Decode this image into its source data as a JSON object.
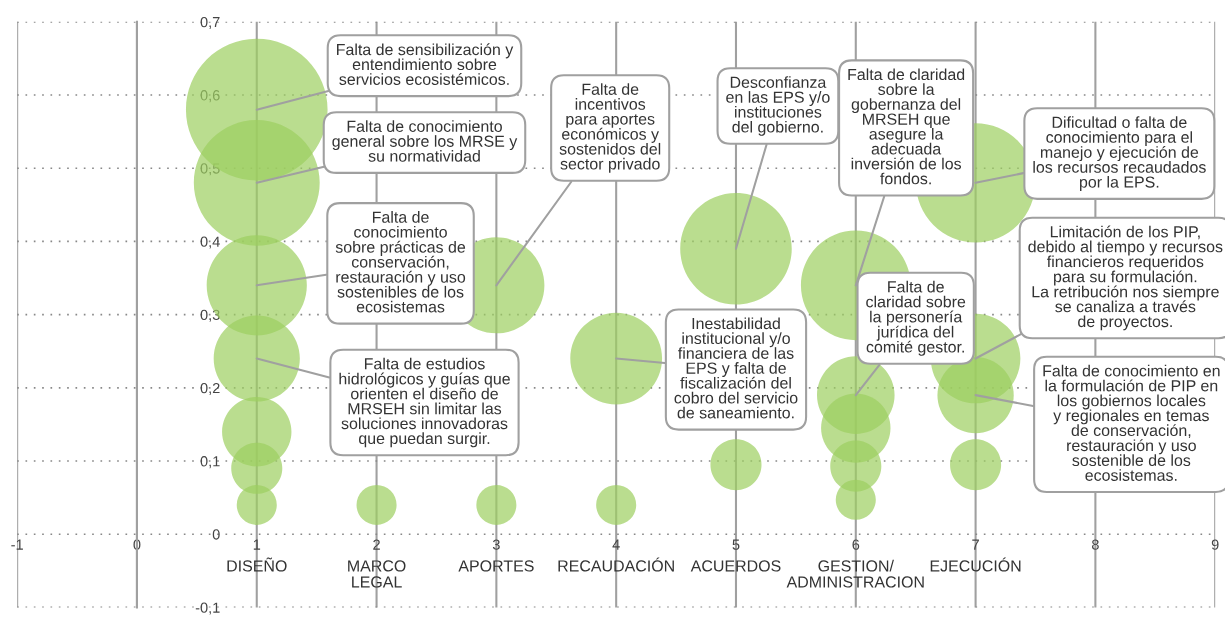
{
  "chart_data": {
    "type": "bubble",
    "x": [
      1,
      1,
      1,
      1,
      1,
      1,
      1,
      2,
      3,
      3,
      4,
      4,
      5,
      5,
      6,
      6,
      6,
      6,
      6,
      7,
      7,
      7,
      7
    ],
    "series": [
      {
        "color": "#9ccf5f",
        "values": [
          0.58,
          0.48,
          0.34,
          0.24,
          0.14,
          0.09,
          0.04,
          0.04,
          0.34,
          0.04,
          0.24,
          0.04,
          0.39,
          0.095,
          0.34,
          0.19,
          0.145,
          0.093,
          0.047,
          0.48,
          0.24,
          0.19,
          0.095
        ],
        "sizes": [
          1,
          0.79,
          0.5,
          0.37,
          0.24,
          0.13,
          0.08,
          0.08,
          0.46,
          0.08,
          0.42,
          0.08,
          0.62,
          0.13,
          0.6,
          0.3,
          0.24,
          0.13,
          0.08,
          0.71,
          0.4,
          0.29,
          0.13
        ]
      }
    ],
    "xlim": [
      -1,
      9
    ],
    "xticks": [
      -1,
      0,
      1,
      2,
      3,
      4,
      5,
      6,
      7,
      8,
      9
    ],
    "ylim": [
      -0.1,
      0.7
    ],
    "yticks": [
      {
        "value": -0.1,
        "label": "-0,1"
      },
      {
        "value": 0,
        "label": "0"
      },
      {
        "value": 0.1,
        "label": "0,1"
      },
      {
        "value": 0.2,
        "label": "0,2"
      },
      {
        "value": 0.3,
        "label": "0,3"
      },
      {
        "value": 0.4,
        "label": "0,4"
      },
      {
        "value": 0.5,
        "label": "0,5"
      },
      {
        "value": 0.6,
        "label": "0,6"
      },
      {
        "value": 0.7,
        "label": "0,7"
      }
    ],
    "grid": true,
    "annotations": [
      {
        "text": "Falta de sensibilización y\nentendimiento sobre\nservicios ecosistémicos.",
        "x": 1,
        "y": 0.58
      },
      {
        "text": "Falta de conocimiento\ngeneral sobre los MRSE y\nsu normatividad",
        "x": 1,
        "y": 0.48
      },
      {
        "text": "Falta de\nconocimiento\nsobre prácticas de\nconservación,\nrestauración y uso\nsostenibles de los\necosistemas",
        "x": 1,
        "y": 0.34
      },
      {
        "text": "Falta de estudios\nhidrológicos y guías que\norienten el diseño de\nMRSEH sin limitar las\nsoluciones innovadoras\nque puedan surgir.",
        "x": 1,
        "y": 0.24
      },
      {
        "text": "Falta de\nincentivos\npara aportes\neconómicos y\nsostenidos del\nsector privado",
        "x": 3,
        "y": 0.34
      },
      {
        "text": "Inestabilidad\ninstitucional y/o\nfinanciera de las\nEPS y falta de\nfiscalización del\ncobro del servicio\nde saneamiento.",
        "x": 4,
        "y": 0.24
      },
      {
        "text": "Desconfianza\nen las EPS y/o\ninstituciones\ndel gobierno.",
        "x": 5,
        "y": 0.39
      },
      {
        "text": "Falta de claridad\nsobre la\ngobernanza del\nMRSEH que\nasegure la\nadecuada\ninversión de los\nfondos.",
        "x": 6,
        "y": 0.34
      },
      {
        "text": "Falta de\nclaridad sobre\nla personería\njurídica del\ncomité gestor.",
        "x": 6,
        "y": 0.19
      },
      {
        "text": "Dificultad o falta de\nconocimiento para el\nmanejo y ejecución de\nlos recursos recaudados\npor la EPS.",
        "x": 7,
        "y": 0.48
      },
      {
        "text": "Limitación de los PIP,\ndebido al tiempo y recursos\nfinancieros requeridos\npara su formulación.\nLa retribución nos siempre\nse canaliza a través\nde proyectos.",
        "x": 7,
        "y": 0.24
      },
      {
        "text": "Falta de conocimiento en\nla formulación de PIP en\nlos gobiernos locales\ny regionales en temas\nde conservación,\nrestauración y uso\nsostenible de los\necosistemas.",
        "x": 7,
        "y": 0.19
      },
      "DISEÑO",
      "MARCO\nLEGAL",
      "APORTES",
      "RECAUDACIÓN",
      "ACUERDOS",
      "GESTION/\nADMINISTRACION",
      "EJECUCIÓN"
    ]
  }
}
